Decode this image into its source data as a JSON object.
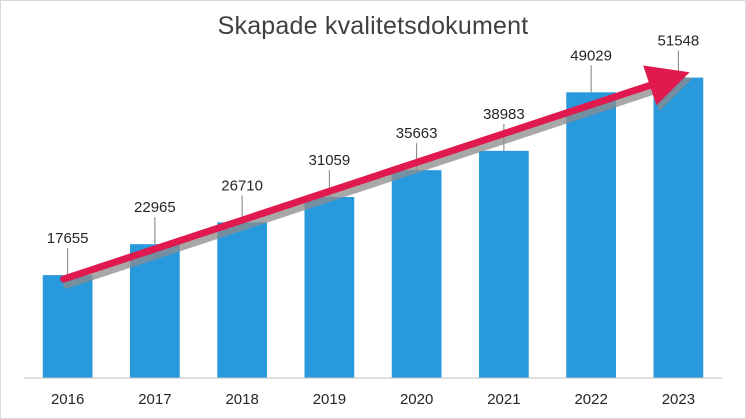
{
  "chart_data": {
    "type": "bar",
    "title": "Skapade kvalitetsdokument",
    "xlabel": "",
    "ylabel": "",
    "categories": [
      "2016",
      "2017",
      "2018",
      "2019",
      "2020",
      "2021",
      "2022",
      "2023"
    ],
    "values": [
      17655,
      22965,
      26710,
      31059,
      35663,
      38983,
      49029,
      51548
    ],
    "ylim": [
      0,
      58000
    ],
    "grid": false,
    "legend": "none",
    "data_labels": true,
    "trend_arrow": true
  },
  "colors": {
    "bar": "#2899dc",
    "arrow": "#e0194f",
    "arrow_shadow": "#8c8c8c",
    "axis": "#bfbfbf",
    "leader_line": "#7f7f7f"
  }
}
